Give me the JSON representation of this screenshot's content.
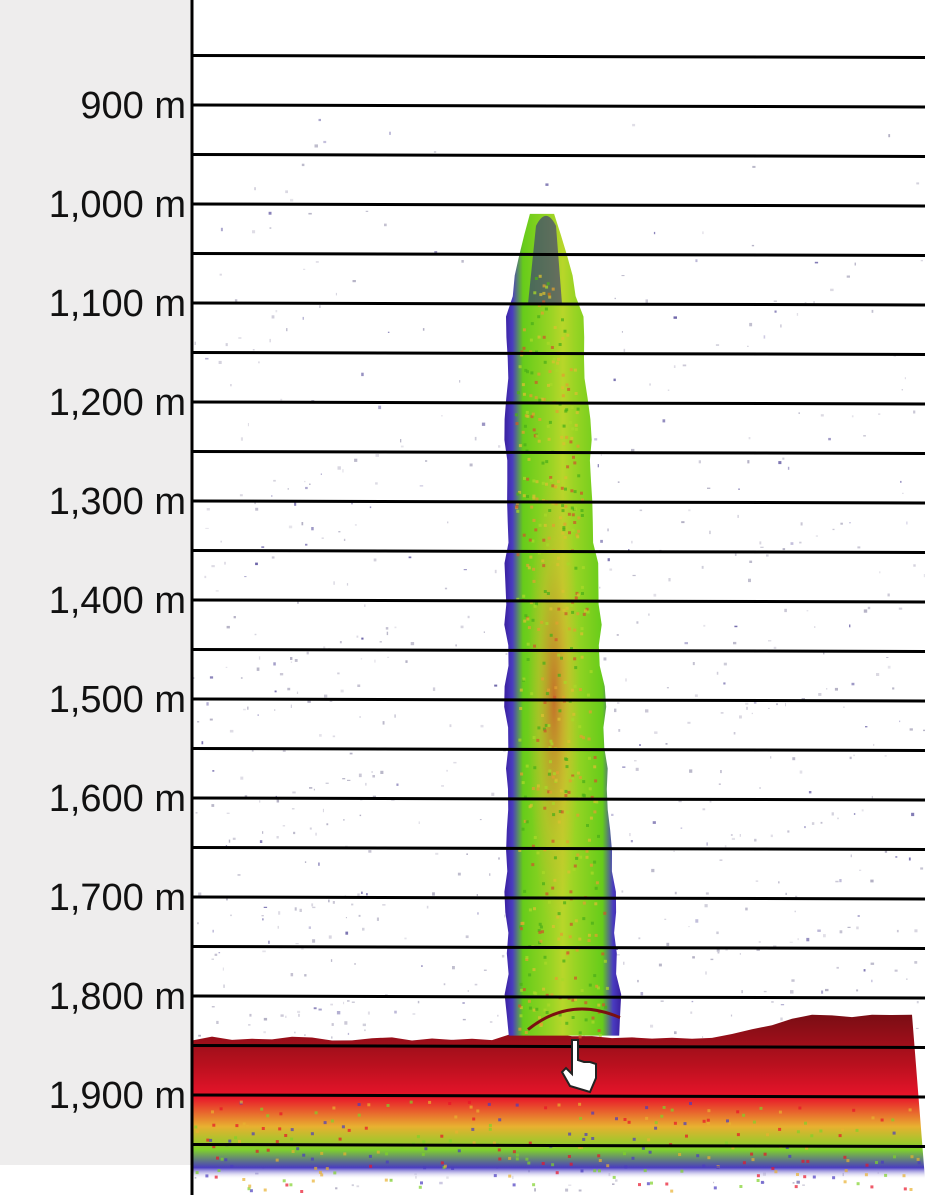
{
  "chart_data": {
    "type": "heatmap",
    "title": "",
    "xlabel": "",
    "ylabel": "",
    "y_axis": {
      "unit": "m",
      "direction": "depth increasing downward",
      "range": [
        810,
        1990
      ],
      "tick_values": [
        900,
        1000,
        1100,
        1200,
        1300,
        1400,
        1500,
        1600,
        1700,
        1800,
        1900
      ],
      "tick_labels": [
        "900 m",
        "1,000 m",
        "1,100 m",
        "1,200 m",
        "1,300 m",
        "1,400 m",
        "1,500 m",
        "1,600 m",
        "1,700 m",
        "1,800 m",
        "1,900 m"
      ],
      "gridline_interval": 50
    },
    "grid": true,
    "plume": {
      "top_depth": 1010,
      "base_depth": 1840
    },
    "seafloor_depth": 1845,
    "colors": {
      "background": "#ffffff",
      "label_panel": "#eeeded",
      "gridline": "#000000",
      "plume_edge": "#3a1fa0",
      "plume_low": "#66cc1a",
      "plume_mid": "#c4e02c",
      "plume_high": "#cc5a2a",
      "seafloor_top": "#7a0d14",
      "seafloor_mid": "#e8142a",
      "seafloor_low": "#7fd22a"
    },
    "icons": [
      "hand-pointer-icon"
    ]
  }
}
